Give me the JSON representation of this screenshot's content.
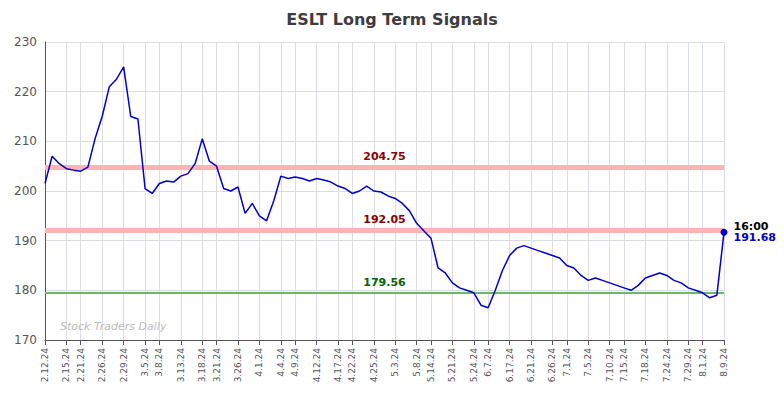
{
  "chart_data": {
    "type": "line",
    "title": "ESLT Long Term Signals",
    "watermark": {
      "text": "Stock Traders Daily",
      "color": "#bbbbbb"
    },
    "categories": [
      "2.12.24",
      null,
      null,
      "2.15.24",
      null,
      "2.21.24",
      null,
      null,
      "2.26.24",
      null,
      null,
      "2.29.24",
      null,
      null,
      "3.5.24",
      null,
      "3.8.24",
      null,
      null,
      "3.13.24",
      null,
      null,
      "3.18.24",
      null,
      "3.21.24",
      null,
      null,
      "3.26.24",
      null,
      null,
      "4.1.24",
      null,
      null,
      "4.4.24",
      null,
      "4.9.24",
      null,
      null,
      "4.12.24",
      null,
      null,
      "4.17.24",
      null,
      "4.22.24",
      null,
      null,
      "4.25.24",
      null,
      null,
      "5.3.24",
      null,
      null,
      "5.8.24",
      null,
      "5.14.24",
      null,
      null,
      "5.21.24",
      null,
      null,
      "5.24.24",
      null,
      "6.7.24",
      null,
      null,
      "6.17.24",
      null,
      null,
      "6.21.24",
      null,
      null,
      "6.26.24",
      null,
      "7.1.24",
      null,
      null,
      "7.5.24",
      null,
      null,
      "7.10.24",
      null,
      "7.15.24",
      null,
      null,
      "7.18.24",
      null,
      null,
      "7.24.24",
      null,
      null,
      "7.29.24",
      null,
      "8.1.24",
      null,
      null,
      "8.9.24"
    ],
    "values": [
      201.5,
      207.0,
      205.5,
      204.5,
      204.2,
      204.0,
      204.8,
      210.5,
      215.0,
      221.0,
      222.5,
      225.0,
      215.0,
      214.5,
      200.5,
      199.5,
      201.5,
      202.0,
      201.8,
      203.0,
      203.5,
      205.5,
      210.5,
      206.0,
      205.0,
      200.5,
      200.0,
      200.8,
      195.5,
      197.5,
      195.0,
      194.0,
      198.0,
      203.0,
      202.5,
      202.8,
      202.5,
      202.0,
      202.5,
      202.2,
      201.8,
      201.0,
      200.5,
      199.5,
      200.0,
      201.0,
      200.0,
      199.8,
      199.0,
      198.5,
      197.5,
      196.0,
      193.5,
      192.0,
      190.5,
      184.5,
      183.5,
      181.5,
      180.5,
      180.0,
      179.5,
      177.0,
      176.5,
      180.0,
      184.0,
      187.0,
      188.5,
      189.0,
      188.5,
      188.0,
      187.5,
      187.0,
      186.5,
      185.0,
      184.5,
      183.0,
      182.0,
      182.5,
      182.0,
      181.5,
      181.0,
      180.5,
      180.0,
      181.0,
      182.5,
      183.0,
      183.5,
      183.0,
      182.0,
      181.5,
      180.5,
      180.0,
      179.5,
      178.5,
      179.0,
      191.68
    ],
    "color": "#0000cc",
    "reference_lines": [
      {
        "value": 204.75,
        "color": "#ffb3b3",
        "label_color": "#8b0000"
      },
      {
        "value": 192.05,
        "color": "#ffb3b3",
        "label_color": "#8b0000"
      },
      {
        "value": 179.56,
        "color": "#66bb66",
        "label_color": "#006600"
      }
    ],
    "annotations": [
      {
        "text": "16:00",
        "x": "8.9.24",
        "y": 191.68,
        "color": "#000000"
      },
      {
        "text": "191.68",
        "x": "8.9.24",
        "y": 191.68,
        "color": "#0000cc"
      }
    ],
    "ylim": [
      170,
      230
    ],
    "yticks": [
      170,
      180,
      190,
      200,
      210,
      220,
      230
    ],
    "grid": true
  }
}
